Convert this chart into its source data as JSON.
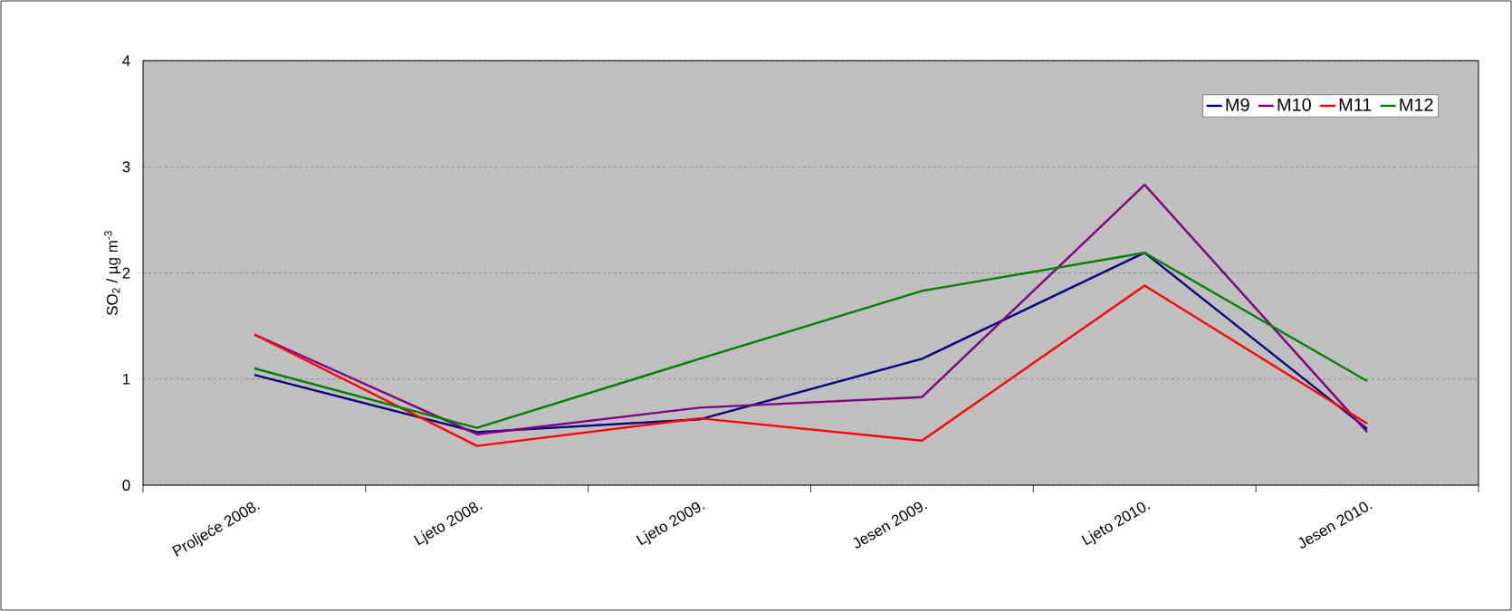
{
  "chart_data": {
    "type": "line",
    "ylabel": "SO$_{2}$ / µg m$^{-3}$",
    "categories": [
      "Proljeće 2008.",
      "Ljeto 2008.",
      "Ljeto 2009.",
      "Jesen 2009.",
      "Ljeto 2010.",
      "Jesen 2010."
    ],
    "series": [
      {
        "name": "M9",
        "color": "#000080",
        "values": [
          1.04,
          0.5,
          0.62,
          1.19,
          2.19,
          0.53
        ]
      },
      {
        "name": "M10",
        "color": "#800080",
        "values": [
          1.42,
          0.48,
          0.73,
          0.83,
          2.83,
          0.5
        ]
      },
      {
        "name": "M11",
        "color": "#ff0000",
        "values": [
          1.42,
          0.37,
          0.63,
          0.42,
          1.88,
          0.58
        ]
      },
      {
        "name": "M12",
        "color": "#008000",
        "values": [
          1.1,
          0.54,
          1.19,
          1.83,
          2.19,
          0.98
        ]
      }
    ],
    "ylim": [
      0,
      4
    ],
    "yticks": [
      0,
      1,
      2,
      3,
      4
    ],
    "grid": "y",
    "legend": "top right",
    "marker": "none",
    "line_style": "solid"
  }
}
